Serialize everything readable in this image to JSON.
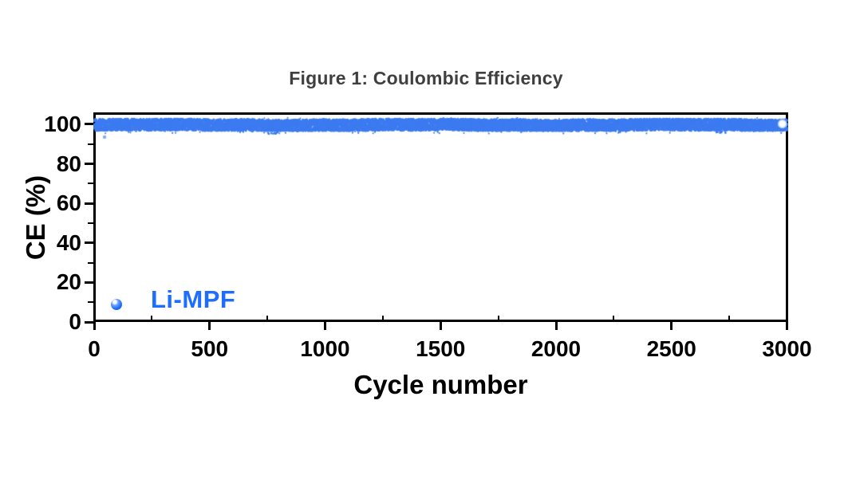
{
  "title": {
    "text": "Figure 1: Coulombic Efficiency",
    "color": "#3f3f3f"
  },
  "legend": {
    "label": "Li-MPF",
    "marker": "sphere-dot-icon",
    "text_color": "#1d6dff"
  },
  "colors": {
    "band_blue": "#3d7bf0",
    "outlier_blue": "#7fb0f7",
    "legend_blue": "#1d6dff",
    "axis_black": "#000000",
    "title_gray": "#3f3f3f",
    "end_marker_fill": "#fbfdff",
    "end_marker_rim": "#a9c8f8"
  },
  "chart_data": {
    "type": "scatter",
    "title": "Figure 1: Coulombic Efficiency",
    "xlabel": "Cycle number",
    "ylabel": "CE (%)",
    "xlim": [
      0,
      3000
    ],
    "ylim": [
      0,
      106
    ],
    "x_ticks": [
      0,
      500,
      1000,
      1500,
      2000,
      2500,
      3000
    ],
    "x_tick_labels": [
      "0",
      "500",
      "1000",
      "1500",
      "2000",
      "2500",
      "3000"
    ],
    "x_minor_ticks": [
      250,
      750,
      1250,
      1750,
      2250,
      2750
    ],
    "y_ticks": [
      0,
      20,
      40,
      60,
      80,
      100
    ],
    "y_tick_labels": [
      "0",
      "20",
      "40",
      "60",
      "80",
      "100"
    ],
    "y_minor_ticks": [
      10,
      30,
      50,
      70,
      90
    ],
    "grid": false,
    "legend_position": "inside-bottom-left",
    "series": [
      {
        "name": "Li-MPF",
        "marker_color": "#3d7bf0",
        "band": {
          "cycle_start": 1,
          "cycle_end": 3000,
          "ce_mean": 99.6,
          "ce_min": 96.8,
          "ce_max": 102.6
        },
        "sampled_points": {
          "cycles": [
            0,
            250,
            500,
            750,
            1000,
            1250,
            1500,
            1750,
            2000,
            2250,
            2500,
            2750,
            3000
          ],
          "ce": [
            99.5,
            99.3,
            99.6,
            99.0,
            99.7,
            99.2,
            99.5,
            99.6,
            99.3,
            99.5,
            99.4,
            99.6,
            99.5
          ]
        },
        "dip_regions": [
          {
            "cycle_center": 775,
            "ce_low": 94.8
          },
          {
            "cycle_center": 2715,
            "ce_low": 95.5
          }
        ],
        "outliers": [
          {
            "cycle": 45,
            "ce": 93.5
          }
        ],
        "end_marker": {
          "cycle": 2980,
          "ce": 100.2
        }
      }
    ]
  }
}
